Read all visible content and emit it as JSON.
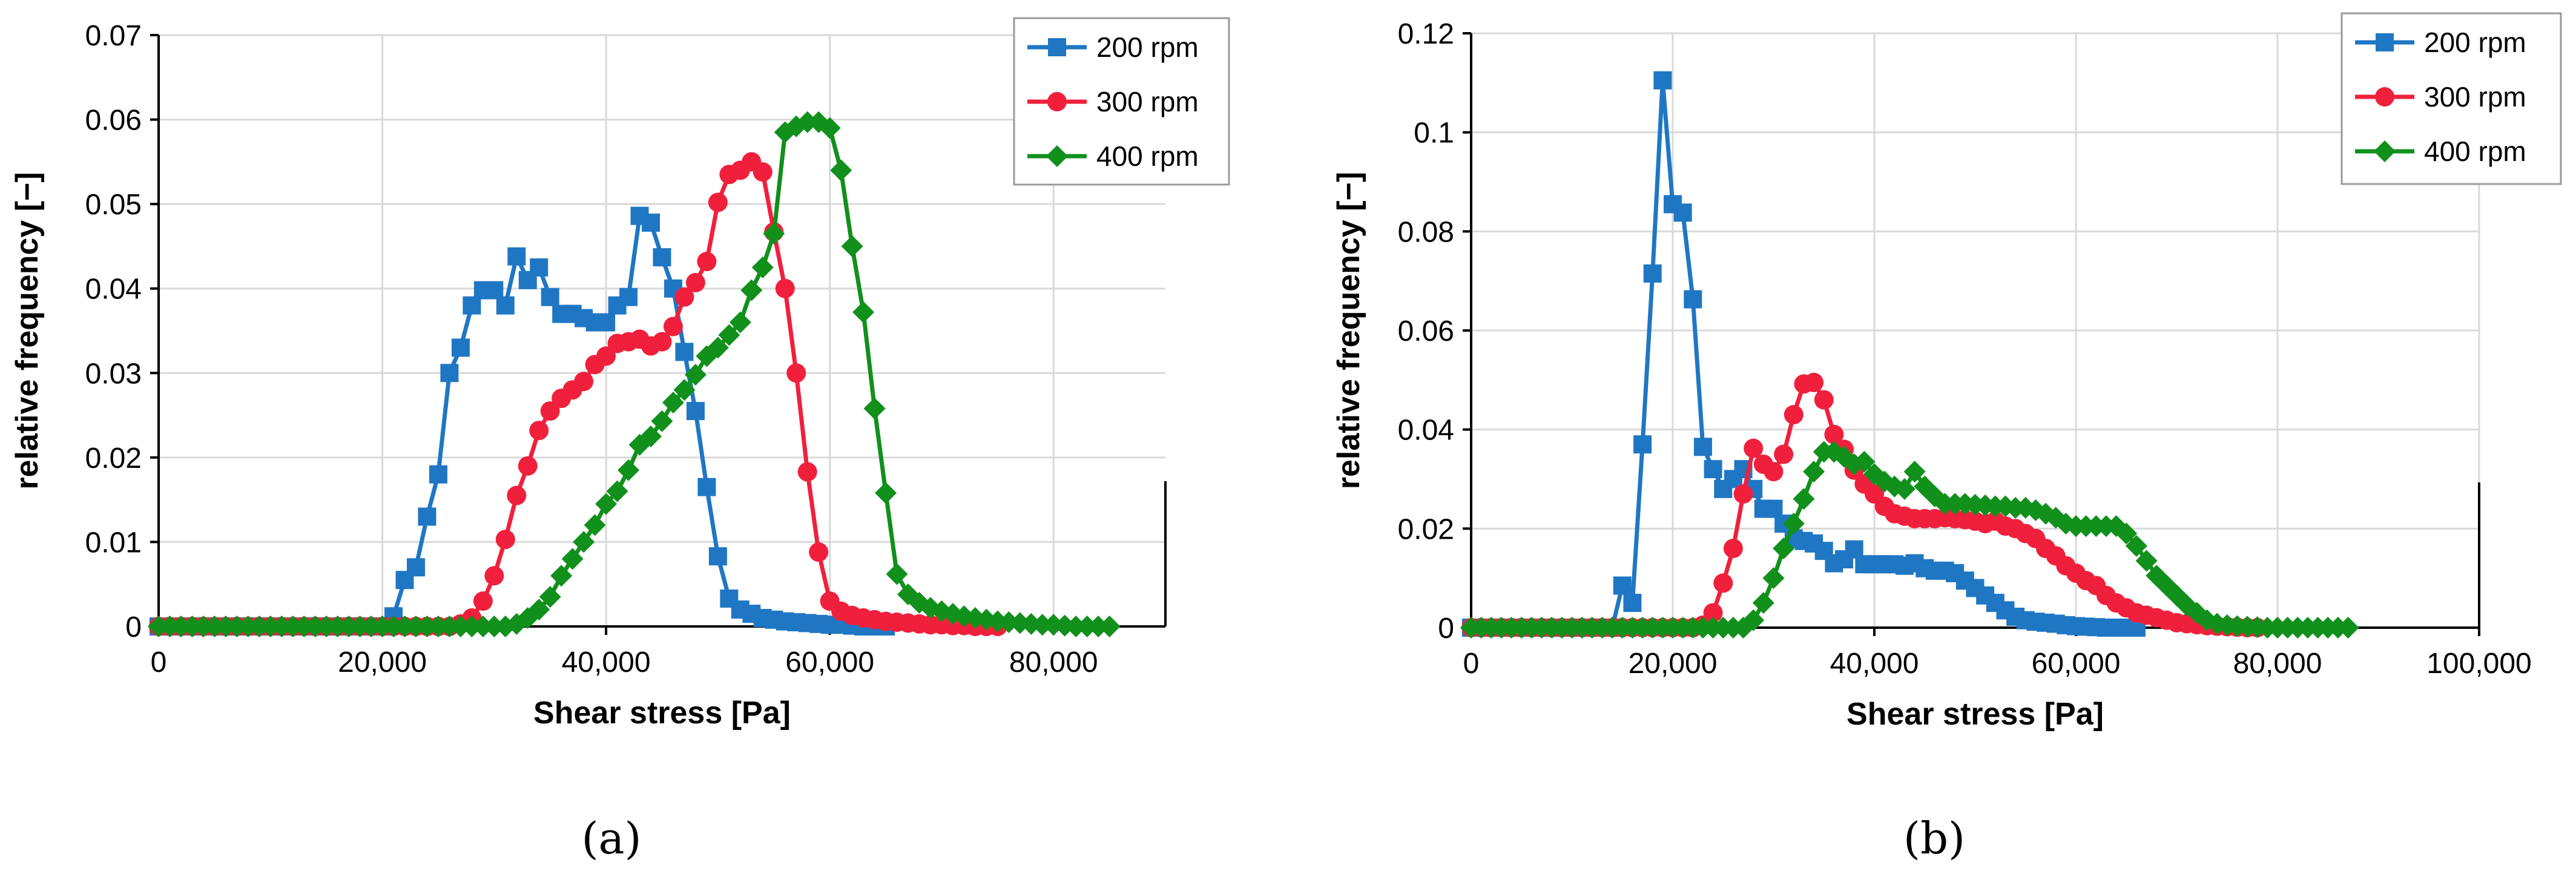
{
  "chart_data": [
    {
      "type": "line",
      "caption": "(a)",
      "xlabel": "Shear stress [Pa]",
      "ylabel": "relative frequency [−]",
      "xlim": [
        0,
        90000
      ],
      "ylim": [
        0,
        0.07
      ],
      "xticks": [
        "0",
        "20,000",
        "40,000",
        "60,000",
        "80,000"
      ],
      "xtick_values": [
        0,
        20000,
        40000,
        60000,
        80000
      ],
      "yticks": [
        "0",
        "0.01",
        "0.02",
        "0.03",
        "0.04",
        "0.05",
        "0.06",
        "0.07"
      ],
      "ytick_values": [
        0,
        0.01,
        0.02,
        0.03,
        0.04,
        0.05,
        0.06,
        0.07
      ],
      "grid": true,
      "legend": "top-right",
      "series": [
        {
          "name": "200 rpm",
          "color": "#1f77c4",
          "marker": "square",
          "x": [
            0,
            1000,
            2000,
            3000,
            4000,
            5000,
            6000,
            7000,
            8000,
            9000,
            10000,
            11000,
            12000,
            13000,
            14000,
            15000,
            16000,
            17000,
            18000,
            19000,
            20000,
            21000,
            22000,
            23000,
            24000,
            25000,
            26000,
            27000,
            28000,
            29000,
            30000,
            31000,
            32000,
            33000,
            34000,
            35000,
            36000,
            37000,
            38000,
            39000,
            40000,
            41000,
            42000,
            43000,
            44000,
            45000,
            46000,
            47000,
            48000,
            49000,
            50000,
            51000,
            52000,
            53000,
            54000,
            55000,
            56000,
            57000,
            58000,
            59000,
            60000,
            61000,
            62000,
            63000,
            64000,
            65000
          ],
          "y": [
            0,
            0,
            0,
            0,
            0,
            0,
            0,
            0,
            0,
            0,
            0,
            0,
            0,
            0,
            0,
            0,
            0,
            0,
            0,
            0,
            0,
            0.0012,
            0.0055,
            0.007,
            0.013,
            0.018,
            0.03,
            0.033,
            0.038,
            0.0398,
            0.0398,
            0.038,
            0.0438,
            0.041,
            0.0425,
            0.039,
            0.037,
            0.037,
            0.0365,
            0.036,
            0.036,
            0.038,
            0.039,
            0.0486,
            0.0478,
            0.0437,
            0.04,
            0.0325,
            0.0255,
            0.0165,
            0.0083,
            0.0033,
            0.002,
            0.0015,
            0.001,
            0.0008,
            0.0006,
            0.0005,
            0.0004,
            0.0003,
            0.0002,
            0.0002,
            0.0001,
            0,
            0,
            0
          ]
        },
        {
          "name": "300 rpm",
          "color": "#f0203c",
          "marker": "circle",
          "x": [
            0,
            1000,
            2000,
            3000,
            4000,
            5000,
            6000,
            7000,
            8000,
            9000,
            10000,
            11000,
            12000,
            13000,
            14000,
            15000,
            16000,
            17000,
            18000,
            19000,
            20000,
            21000,
            22000,
            23000,
            24000,
            25000,
            26000,
            27000,
            28000,
            29000,
            30000,
            31000,
            32000,
            33000,
            34000,
            35000,
            36000,
            37000,
            38000,
            39000,
            40000,
            41000,
            42000,
            43000,
            44000,
            45000,
            46000,
            47000,
            48000,
            49000,
            50000,
            51000,
            52000,
            53000,
            54000,
            55000,
            56000,
            57000,
            58000,
            59000,
            60000,
            61000,
            62000,
            63000,
            64000,
            65000,
            66000,
            67000,
            68000,
            69000,
            70000,
            71000,
            72000,
            73000,
            74000,
            75000
          ],
          "y": [
            0,
            0,
            0,
            0,
            0,
            0,
            0,
            0,
            0,
            0,
            0,
            0,
            0,
            0,
            0,
            0,
            0,
            0,
            0,
            0,
            0,
            0,
            0,
            0,
            0,
            0,
            0,
            0.0003,
            0.001,
            0.003,
            0.006,
            0.0103,
            0.0155,
            0.019,
            0.0232,
            0.0255,
            0.027,
            0.028,
            0.029,
            0.031,
            0.032,
            0.0335,
            0.0337,
            0.034,
            0.0332,
            0.0337,
            0.0355,
            0.039,
            0.0407,
            0.0432,
            0.0502,
            0.0535,
            0.054,
            0.055,
            0.0538,
            0.0467,
            0.04,
            0.03,
            0.0183,
            0.0088,
            0.003,
            0.0018,
            0.0013,
            0.001,
            0.0008,
            0.0006,
            0.0005,
            0.0004,
            0.0003,
            0.0002,
            0.0002,
            0.0001,
            0.0001,
            0,
            0,
            0
          ]
        },
        {
          "name": "400 rpm",
          "color": "#11901c",
          "marker": "diamond",
          "x": [
            0,
            1000,
            2000,
            3000,
            4000,
            5000,
            6000,
            7000,
            8000,
            9000,
            10000,
            11000,
            12000,
            13000,
            14000,
            15000,
            16000,
            17000,
            18000,
            19000,
            20000,
            21000,
            22000,
            23000,
            24000,
            25000,
            26000,
            27000,
            28000,
            29000,
            30000,
            31000,
            32000,
            33000,
            34000,
            35000,
            36000,
            37000,
            38000,
            39000,
            40000,
            41000,
            42000,
            43000,
            44000,
            45000,
            46000,
            47000,
            48000,
            49000,
            50000,
            51000,
            52000,
            53000,
            54000,
            55000,
            56000,
            57000,
            58000,
            59000,
            60000,
            61000,
            62000,
            63000,
            64000,
            65000,
            66000,
            67000,
            68000,
            69000,
            70000,
            71000,
            72000,
            73000,
            74000,
            75000,
            76000,
            77000,
            78000,
            79000,
            80000,
            81000,
            82000,
            83000,
            84000,
            85000
          ],
          "y": [
            0,
            0,
            0,
            0,
            0,
            0,
            0,
            0,
            0,
            0,
            0,
            0,
            0,
            0,
            0,
            0,
            0,
            0,
            0,
            0,
            0,
            0,
            0,
            0,
            0,
            0,
            0,
            0,
            0,
            0,
            0,
            0,
            0.0003,
            0.001,
            0.002,
            0.0035,
            0.006,
            0.008,
            0.01,
            0.012,
            0.0145,
            0.016,
            0.0185,
            0.0215,
            0.0225,
            0.0243,
            0.0265,
            0.028,
            0.0298,
            0.032,
            0.033,
            0.0345,
            0.036,
            0.0398,
            0.0425,
            0.0465,
            0.0585,
            0.0592,
            0.0597,
            0.0597,
            0.059,
            0.054,
            0.045,
            0.0372,
            0.0258,
            0.0158,
            0.0062,
            0.0038,
            0.0028,
            0.0022,
            0.0018,
            0.0015,
            0.0012,
            0.001,
            0.0008,
            0.0006,
            0.0005,
            0.0004,
            0.0003,
            0.0002,
            0.0002,
            0.0001,
            0,
            0,
            0,
            0
          ]
        }
      ]
    },
    {
      "type": "line",
      "caption": "(b)",
      "xlabel": "Shear stress [Pa]",
      "ylabel": "relative frequency [−]",
      "xlim": [
        0,
        100000
      ],
      "ylim": [
        0,
        0.12
      ],
      "xticks": [
        "0",
        "20,000",
        "40,000",
        "60,000",
        "80,000",
        "100,000"
      ],
      "xtick_values": [
        0,
        20000,
        40000,
        60000,
        80000,
        100000
      ],
      "yticks": [
        "0",
        "0.02",
        "0.04",
        "0.06",
        "0.08",
        "0.1",
        "0.12"
      ],
      "ytick_values": [
        0,
        0.02,
        0.04,
        0.06,
        0.08,
        0.1,
        0.12
      ],
      "grid": true,
      "legend": "top-right",
      "series": [
        {
          "name": "200 rpm",
          "color": "#1f77c4",
          "marker": "square",
          "x": [
            0,
            1000,
            2000,
            3000,
            4000,
            5000,
            6000,
            7000,
            8000,
            9000,
            10000,
            11000,
            12000,
            13000,
            14000,
            15000,
            16000,
            17000,
            18000,
            19000,
            20000,
            21000,
            22000,
            23000,
            24000,
            25000,
            26000,
            27000,
            28000,
            29000,
            30000,
            31000,
            32000,
            33000,
            34000,
            35000,
            36000,
            37000,
            38000,
            39000,
            40000,
            41000,
            42000,
            43000,
            44000,
            45000,
            46000,
            47000,
            48000,
            49000,
            50000,
            51000,
            52000,
            53000,
            54000,
            55000,
            56000,
            57000,
            58000,
            59000,
            60000,
            61000,
            62000,
            63000,
            64000,
            65000,
            66000
          ],
          "y": [
            0,
            0,
            0,
            0,
            0,
            0,
            0,
            0,
            0,
            0,
            0,
            0,
            0,
            0,
            0,
            0.0085,
            0.005,
            0.037,
            0.0715,
            0.1105,
            0.0855,
            0.0838,
            0.0663,
            0.0365,
            0.032,
            0.028,
            0.03,
            0.032,
            0.028,
            0.024,
            0.024,
            0.021,
            0.018,
            0.0175,
            0.017,
            0.0155,
            0.013,
            0.0138,
            0.0158,
            0.0128,
            0.0128,
            0.0128,
            0.0128,
            0.0125,
            0.013,
            0.012,
            0.0115,
            0.0115,
            0.011,
            0.0095,
            0.008,
            0.0065,
            0.005,
            0.0035,
            0.0022,
            0.0015,
            0.0012,
            0.001,
            0.0008,
            0.0005,
            0.0003,
            0.0002,
            0.0001,
            0,
            0,
            0,
            0
          ]
        },
        {
          "name": "300 rpm",
          "color": "#f0203c",
          "marker": "circle",
          "x": [
            0,
            1000,
            2000,
            3000,
            4000,
            5000,
            6000,
            7000,
            8000,
            9000,
            10000,
            11000,
            12000,
            13000,
            14000,
            15000,
            16000,
            17000,
            18000,
            19000,
            20000,
            21000,
            22000,
            23000,
            24000,
            25000,
            26000,
            27000,
            28000,
            29000,
            30000,
            31000,
            32000,
            33000,
            34000,
            35000,
            36000,
            37000,
            38000,
            39000,
            40000,
            41000,
            42000,
            43000,
            44000,
            45000,
            46000,
            47000,
            48000,
            49000,
            50000,
            51000,
            52000,
            53000,
            54000,
            55000,
            56000,
            57000,
            58000,
            59000,
            60000,
            61000,
            62000,
            63000,
            64000,
            65000,
            66000,
            67000,
            68000,
            69000,
            70000,
            71000,
            72000,
            73000,
            74000,
            75000,
            76000,
            77000,
            78000
          ],
          "y": [
            0,
            0,
            0,
            0,
            0,
            0,
            0,
            0,
            0,
            0,
            0,
            0,
            0,
            0,
            0,
            0,
            0,
            0,
            0,
            0,
            0,
            0,
            0,
            0.0005,
            0.003,
            0.009,
            0.016,
            0.027,
            0.0362,
            0.033,
            0.0315,
            0.035,
            0.043,
            0.0492,
            0.0495,
            0.046,
            0.039,
            0.036,
            0.0318,
            0.029,
            0.027,
            0.0245,
            0.023,
            0.0225,
            0.022,
            0.022,
            0.022,
            0.0222,
            0.022,
            0.0218,
            0.0215,
            0.021,
            0.0215,
            0.0205,
            0.02,
            0.019,
            0.018,
            0.016,
            0.0145,
            0.0125,
            0.011,
            0.0095,
            0.0085,
            0.0065,
            0.005,
            0.004,
            0.003,
            0.0025,
            0.002,
            0.0015,
            0.001,
            0.0008,
            0.0006,
            0.0004,
            0.0003,
            0.0002,
            0.0001,
            0,
            0
          ]
        },
        {
          "name": "400 rpm",
          "color": "#11901c",
          "marker": "diamond",
          "x": [
            0,
            1000,
            2000,
            3000,
            4000,
            5000,
            6000,
            7000,
            8000,
            9000,
            10000,
            11000,
            12000,
            13000,
            14000,
            15000,
            16000,
            17000,
            18000,
            19000,
            20000,
            21000,
            22000,
            23000,
            24000,
            25000,
            26000,
            27000,
            28000,
            29000,
            30000,
            31000,
            32000,
            33000,
            34000,
            35000,
            36000,
            37000,
            38000,
            39000,
            40000,
            41000,
            42000,
            43000,
            44000,
            45000,
            46000,
            47000,
            48000,
            49000,
            50000,
            51000,
            52000,
            53000,
            54000,
            55000,
            56000,
            57000,
            58000,
            59000,
            60000,
            61000,
            62000,
            63000,
            64000,
            65000,
            66000,
            67000,
            68000,
            69000,
            70000,
            71000,
            72000,
            73000,
            74000,
            75000,
            76000,
            77000,
            78000,
            79000,
            80000,
            81000,
            82000,
            83000,
            84000,
            85000,
            86000,
            87000
          ],
          "y": [
            0,
            0,
            0,
            0,
            0,
            0,
            0,
            0,
            0,
            0,
            0,
            0,
            0,
            0,
            0,
            0,
            0,
            0,
            0,
            0,
            0,
            0,
            0,
            0,
            0,
            0,
            0,
            0,
            0.0015,
            0.005,
            0.01,
            0.016,
            0.021,
            0.026,
            0.0315,
            0.0355,
            0.0355,
            0.0345,
            0.033,
            0.0335,
            0.031,
            0.0295,
            0.0285,
            0.028,
            0.0315,
            0.0285,
            0.0265,
            0.025,
            0.025,
            0.025,
            0.0248,
            0.0247,
            0.0245,
            0.0245,
            0.0242,
            0.0242,
            0.0237,
            0.023,
            0.0222,
            0.021,
            0.0205,
            0.0205,
            0.0205,
            0.0205,
            0.0205,
            0.019,
            0.0165,
            0.0135,
            0.0105,
            0.0085,
            0.0065,
            0.0045,
            0.003,
            0.0015,
            0.0008,
            0.0005,
            0.0003,
            0.0002,
            0.0001,
            0,
            0,
            0,
            0,
            0,
            0,
            0,
            0,
            0
          ]
        }
      ]
    }
  ]
}
